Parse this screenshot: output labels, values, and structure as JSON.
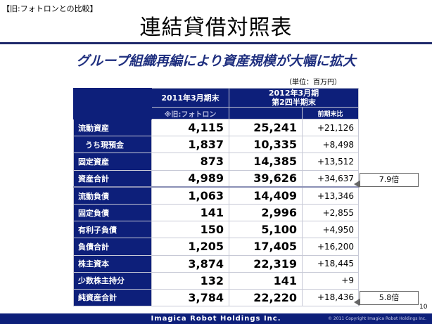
{
  "top_note": "【旧:フォトロンとの比較】",
  "title": "連結貸借対照表",
  "subtitle": "グループ組織再編により資産規模が大幅に拡大",
  "unit": "（単位：百万円）",
  "columns": {
    "period1": "2011年3月期末",
    "period1_sub": "※旧:フォトロン",
    "period2_line1": "2012年3月期",
    "period2_line2": "第2四半期末",
    "diff": "前期末比"
  },
  "rows": [
    {
      "label": "流動資産",
      "v1": "4,115",
      "v2": "25,241",
      "diff": "+21,126"
    },
    {
      "label": "うち現預金",
      "v1": "1,837",
      "v2": "10,335",
      "diff": "+8,498"
    },
    {
      "label": "固定資産",
      "v1": "873",
      "v2": "14,385",
      "diff": "+13,512"
    },
    {
      "label": "資産合計",
      "v1": "4,989",
      "v2": "39,626",
      "diff": "+34,637"
    },
    {
      "label": "流動負債",
      "v1": "1,063",
      "v2": "14,409",
      "diff": "+13,346"
    },
    {
      "label": "固定負債",
      "v1": "141",
      "v2": "2,996",
      "diff": "+2,855"
    },
    {
      "label": "有利子負債",
      "v1": "150",
      "v2": "5,100",
      "diff": "+4,950"
    },
    {
      "label": "負債合計",
      "v1": "1,205",
      "v2": "17,405",
      "diff": "+16,200"
    },
    {
      "label": "株主資本",
      "v1": "3,874",
      "v2": "22,319",
      "diff": "+18,445"
    },
    {
      "label": "少数株主持分",
      "v1": "132",
      "v2": "141",
      "diff": "+9"
    },
    {
      "label": "純資産合計",
      "v1": "3,784",
      "v2": "22,220",
      "diff": "+18,436"
    }
  ],
  "callouts": {
    "assets": "7.9倍",
    "equity": "5.8倍"
  },
  "page_number": "10",
  "footer": {
    "brand": "Imagica Robot Holdings Inc.",
    "copyright": "© 2011 Copyright Imagica Robot Holdings Inc."
  },
  "colors": {
    "navy": "#0d1f7a",
    "subtitle": "#1f2f7f"
  }
}
